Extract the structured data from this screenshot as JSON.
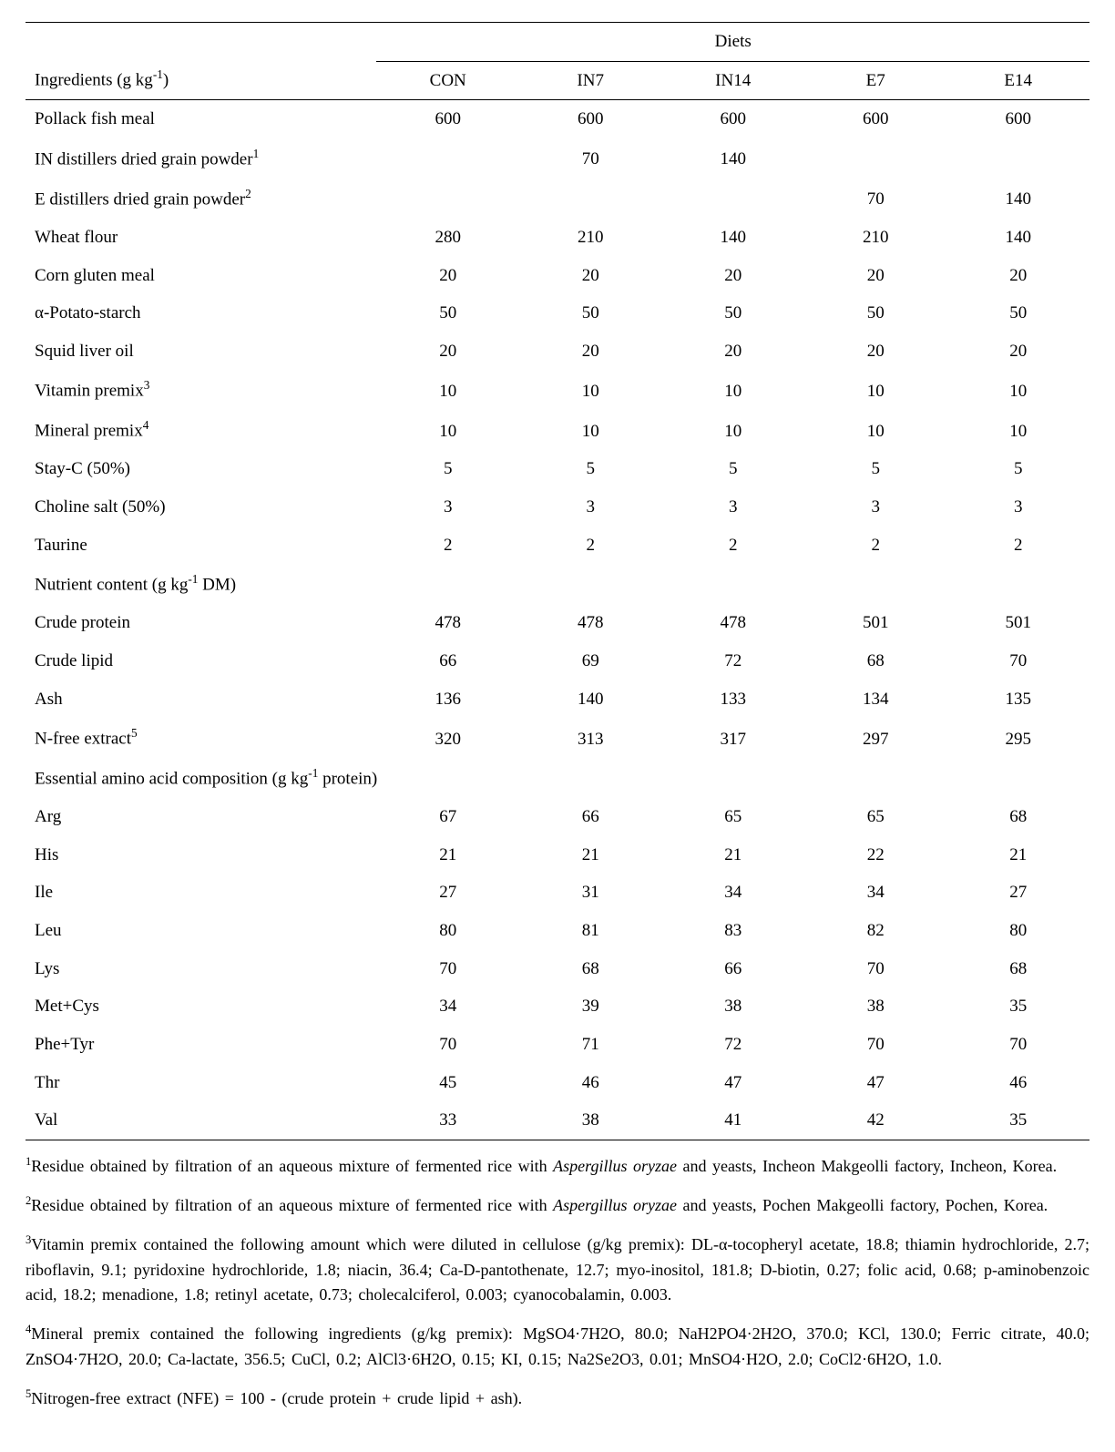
{
  "table": {
    "header_left_html": "Ingredients (g kg<sup>-1</sup>)",
    "header_group": "Diets",
    "columns": [
      "CON",
      "IN7",
      "IN14",
      "E7",
      "E14"
    ],
    "rows": [
      {
        "label_html": "Pollack fish meal",
        "vals": [
          "600",
          "600",
          "600",
          "600",
          "600"
        ]
      },
      {
        "label_html": "IN distillers dried grain powder<sup>1</sup>",
        "vals": [
          "",
          "70",
          "140",
          "",
          ""
        ]
      },
      {
        "label_html": "E distillers dried grain powder<sup>2</sup>",
        "vals": [
          "",
          "",
          "",
          "70",
          "140"
        ]
      },
      {
        "label_html": "Wheat flour",
        "vals": [
          "280",
          "210",
          "140",
          "210",
          "140"
        ]
      },
      {
        "label_html": "Corn gluten meal",
        "vals": [
          "20",
          "20",
          "20",
          "20",
          "20"
        ]
      },
      {
        "label_html": "α-Potato-starch",
        "vals": [
          "50",
          "50",
          "50",
          "50",
          "50"
        ]
      },
      {
        "label_html": "Squid liver oil",
        "vals": [
          "20",
          "20",
          "20",
          "20",
          "20"
        ]
      },
      {
        "label_html": "Vitamin premix<sup>3</sup>",
        "vals": [
          "10",
          "10",
          "10",
          "10",
          "10"
        ]
      },
      {
        "label_html": "Mineral premix<sup>4</sup>",
        "vals": [
          "10",
          "10",
          "10",
          "10",
          "10"
        ]
      },
      {
        "label_html": "Stay-C (50%)",
        "vals": [
          "5",
          "5",
          "5",
          "5",
          "5"
        ]
      },
      {
        "label_html": "Choline salt (50%)",
        "vals": [
          "3",
          "3",
          "3",
          "3",
          "3"
        ]
      },
      {
        "label_html": "Taurine",
        "vals": [
          "2",
          "2",
          "2",
          "2",
          "2"
        ]
      }
    ],
    "section2_label_html": "Nutrient content (g kg<sup>-1</sup> DM)",
    "rows2": [
      {
        "label_html": "Crude protein",
        "vals": [
          "478",
          "478",
          "478",
          "501",
          "501"
        ]
      },
      {
        "label_html": "Crude lipid",
        "vals": [
          "66",
          "69",
          "72",
          "68",
          "70"
        ]
      },
      {
        "label_html": "Ash",
        "vals": [
          "136",
          "140",
          "133",
          "134",
          "135"
        ]
      },
      {
        "label_html": "N-free extract<sup>5</sup>",
        "vals": [
          "320",
          "313",
          "317",
          "297",
          "295"
        ]
      }
    ],
    "section3_label_html": "Essential amino acid composition (g kg<sup>-1</sup> protein)",
    "rows3": [
      {
        "label_html": "Arg",
        "vals": [
          "67",
          "66",
          "65",
          "65",
          "68"
        ]
      },
      {
        "label_html": "His",
        "vals": [
          "21",
          "21",
          "21",
          "22",
          "21"
        ]
      },
      {
        "label_html": "Ile",
        "vals": [
          "27",
          "31",
          "34",
          "34",
          "27"
        ]
      },
      {
        "label_html": "Leu",
        "vals": [
          "80",
          "81",
          "83",
          "82",
          "80"
        ]
      },
      {
        "label_html": "Lys",
        "vals": [
          "70",
          "68",
          "66",
          "70",
          "68"
        ]
      },
      {
        "label_html": "Met+Cys",
        "vals": [
          "34",
          "39",
          "38",
          "38",
          "35"
        ]
      },
      {
        "label_html": "Phe+Tyr",
        "vals": [
          "70",
          "71",
          "72",
          "70",
          "70"
        ]
      },
      {
        "label_html": "Thr",
        "vals": [
          "45",
          "46",
          "47",
          "47",
          "46"
        ]
      },
      {
        "label_html": "Val",
        "vals": [
          "33",
          "38",
          "41",
          "42",
          "35"
        ]
      }
    ]
  },
  "footnotes": [
    "<sup>1</sup>Residue obtained by filtration of an aqueous mixture of fermented rice with <span class=\"italic\">Aspergillus oryzae</span> and yeasts, Incheon Makgeolli factory, Incheon, Korea.",
    "<sup>2</sup>Residue obtained by filtration of an aqueous mixture of fermented rice with <span class=\"italic\">Aspergillus oryzae</span> and yeasts, Pochen Makgeolli factory, Pochen, Korea.",
    "<sup>3</sup>Vitamin premix contained the following amount which were diluted in cellulose (g/kg premix): DL-α-tocopheryl acetate, 18.8; thiamin hydrochloride, 2.7; riboflavin, 9.1; pyridoxine hydrochloride, 1.8; niacin, 36.4; Ca-D-pantothenate, 12.7; myo-inositol, 181.8; D-biotin, 0.27; folic acid, 0.68; p-aminobenzoic acid, 18.2; menadione, 1.8; retinyl acetate, 0.73; cholecalciferol, 0.003; cyanocobalamin, 0.003.",
    "<sup>4</sup>Mineral premix contained the following ingredients (g/kg premix): MgSO4·7H2O, 80.0; NaH2PO4·2H2O, 370.0; KCl, 130.0; Ferric citrate, 40.0; ZnSO4·7H2O, 20.0; Ca-lactate, 356.5; CuCl, 0.2; AlCl3·6H2O, 0.15; KI, 0.15; Na2Se2O3, 0.01; MnSO4·H2O, 2.0; CoCl2·6H2O, 1.0.",
    "<sup>5</sup>Nitrogen-free extract (NFE) = 100 - (crude protein + crude lipid + ash)."
  ]
}
